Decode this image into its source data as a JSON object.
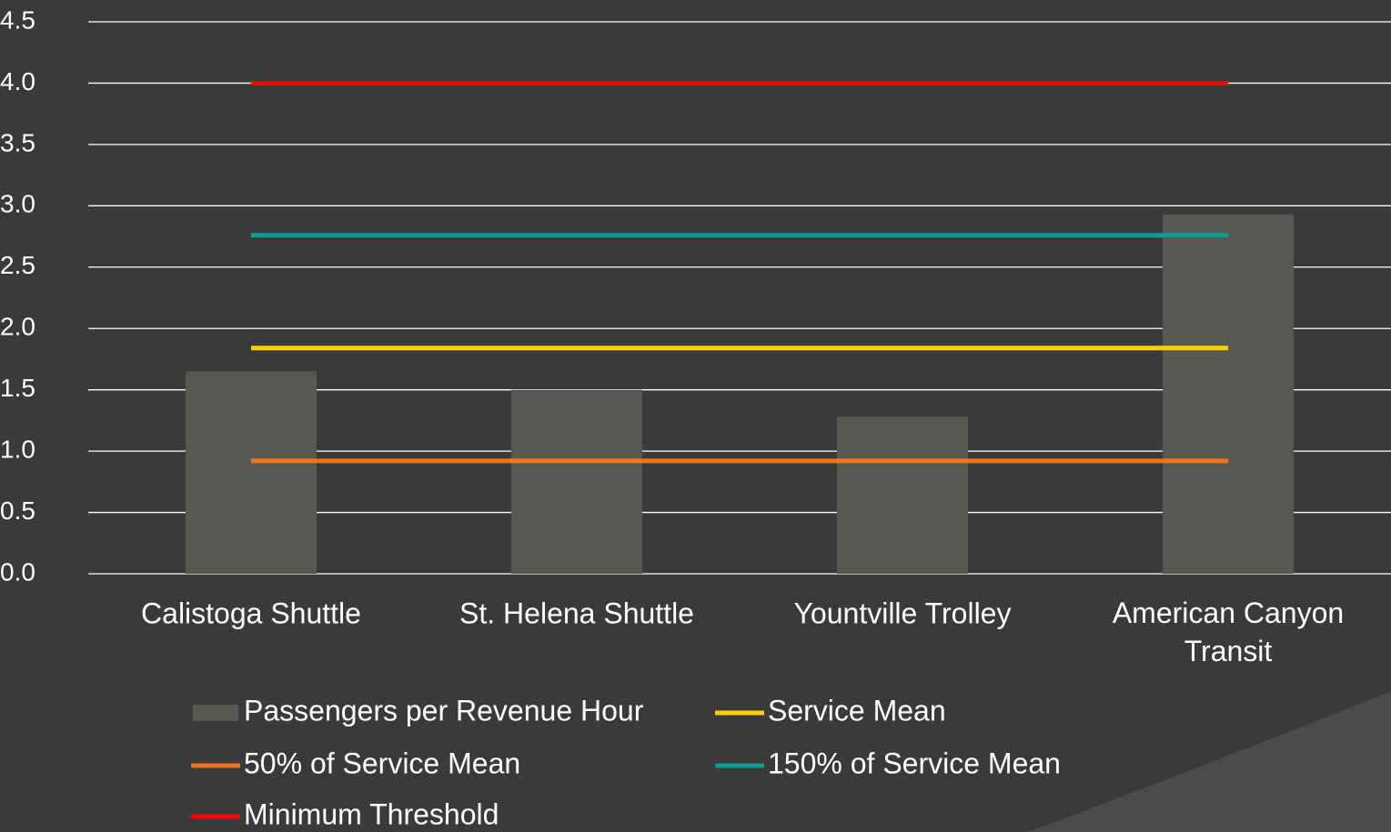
{
  "chart_data": {
    "type": "bar",
    "categories": [
      "Calistoga Shuttle",
      "St. Helena Shuttle",
      "Yountville Trolley",
      "American Canyon Transit"
    ],
    "series": [
      {
        "name": "Passengers per Revenue Hour",
        "type": "bar",
        "color": "#585852",
        "values": [
          1.65,
          1.5,
          1.28,
          2.93
        ]
      },
      {
        "name": "Service Mean",
        "type": "line",
        "color": "#ffd000",
        "values": [
          1.84,
          1.84,
          1.84,
          1.84
        ]
      },
      {
        "name": "50% of Service Mean",
        "type": "line",
        "color": "#e87722",
        "values": [
          0.92,
          0.92,
          0.92,
          0.92
        ]
      },
      {
        "name": "150% of Service Mean",
        "type": "line",
        "color": "#0f9a94",
        "values": [
          2.76,
          2.76,
          2.76,
          2.76
        ]
      },
      {
        "name": "Minimum Threshold",
        "type": "line",
        "color": "#ff0000",
        "values": [
          4,
          4,
          4,
          4
        ]
      }
    ],
    "ylim": [
      0,
      4.5
    ],
    "yticks": [
      {
        "value": 0,
        "label": "0.0"
      },
      0.5,
      {
        "value": 1,
        "label": "1.0"
      },
      1.5,
      {
        "value": 2,
        "label": "2.0"
      },
      2.5,
      {
        "value": 3,
        "label": "3.0"
      },
      3.5,
      {
        "value": 4,
        "label": "4.0"
      },
      4.5
    ],
    "grid": true,
    "legend": "bottom"
  }
}
